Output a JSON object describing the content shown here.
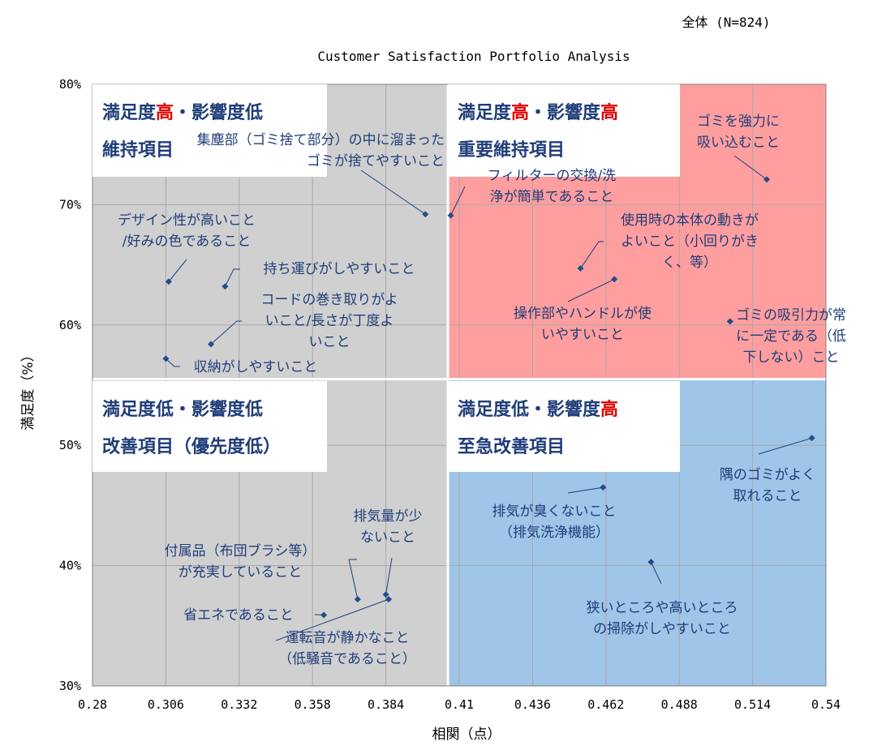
{
  "header": {
    "subset": "全体 (N=824)",
    "title": "Customer Satisfaction Portfolio Analysis"
  },
  "colors": {
    "grey_quadrant": "#d0d0d0",
    "red_quadrant": "#ff9e9e",
    "blue_quadrant": "#9fc5e8",
    "point": "#1f4e8c",
    "label": "#1f3d7a",
    "highlight": "#e00000"
  },
  "quadrants": [
    {
      "id": "top-left",
      "parts": [
        {
          "t": "満足度",
          "hl": false
        },
        {
          "t": "高",
          "hl": true
        },
        {
          "t": "・影響度低",
          "hl": false
        }
      ],
      "sub": "維持項目"
    },
    {
      "id": "top-right",
      "parts": [
        {
          "t": "満足度",
          "hl": false
        },
        {
          "t": "高",
          "hl": true
        },
        {
          "t": "・影響度",
          "hl": false
        },
        {
          "t": "高",
          "hl": true
        }
      ],
      "sub": "重要維持項目"
    },
    {
      "id": "bottom-left",
      "parts": [
        {
          "t": "満足度低・影響度低",
          "hl": false
        }
      ],
      "sub": "改善項目（優先度低）"
    },
    {
      "id": "bottom-right",
      "parts": [
        {
          "t": "満足度低・影響度",
          "hl": false
        },
        {
          "t": "高",
          "hl": true
        }
      ],
      "sub": "至急改善項目"
    }
  ],
  "chart_data": {
    "type": "scatter",
    "xlabel": "相関（点）",
    "ylabel": "満足度（%）",
    "xlim": [
      0.28,
      0.54
    ],
    "ylim": [
      30,
      80
    ],
    "xticks": [
      "0.28",
      "0.306",
      "0.332",
      "0.358",
      "0.384",
      "0.41",
      "0.436",
      "0.462",
      "0.488",
      "0.514",
      "0.54"
    ],
    "yticks": [
      "30%",
      "40%",
      "50%",
      "60%",
      "70%",
      "80%"
    ],
    "x_divider": 0.406,
    "y_divider": 55.5,
    "grid": true,
    "points": [
      {
        "x": 0.519,
        "y": 72.1,
        "label": [
          "ゴミを強力に",
          "吸い込むこと"
        ]
      },
      {
        "x": 0.398,
        "y": 69.2,
        "label": [
          "集塵部（ゴミ捨て部分）の中に溜まった",
          "ゴミが捨てやすいこと"
        ]
      },
      {
        "x": 0.407,
        "y": 69.1,
        "label": [
          "フィルターの交換/洗",
          "浄が簡単であること"
        ]
      },
      {
        "x": 0.453,
        "y": 64.7,
        "label": [
          "使用時の本体の動きが",
          "よいこと（小回りがき",
          "く、等）"
        ]
      },
      {
        "x": 0.465,
        "y": 63.8,
        "label": [
          "操作部やハンドルが使",
          "いやすいこと"
        ]
      },
      {
        "x": 0.506,
        "y": 60.3,
        "label": [
          "ゴミの吸引力が常",
          "に一定である（低",
          "下しない）こと"
        ]
      },
      {
        "x": 0.307,
        "y": 63.6,
        "label": [
          "デザイン性が高いこと",
          "/好みの色であること"
        ]
      },
      {
        "x": 0.327,
        "y": 63.2,
        "label": [
          "持ち運びがしやすいこと"
        ]
      },
      {
        "x": 0.322,
        "y": 58.4,
        "label": [
          "コードの巻き取りがよ",
          "いこと/長さが丁度よ",
          "いこと"
        ]
      },
      {
        "x": 0.306,
        "y": 57.2,
        "label": [
          "収納がしやすいこと"
        ]
      },
      {
        "x": 0.535,
        "y": 50.6,
        "label": [
          "隅のゴミがよく",
          "取れること"
        ]
      },
      {
        "x": 0.461,
        "y": 46.5,
        "label": [
          "排気が臭くないこと",
          "（排気洗浄機能）"
        ]
      },
      {
        "x": 0.478,
        "y": 40.3,
        "label": [
          "狭いところや高いところ",
          "の掃除がしやすいこと"
        ]
      },
      {
        "x": 0.384,
        "y": 37.6,
        "label": [
          "排気量が少",
          "ないこと"
        ]
      },
      {
        "x": 0.385,
        "y": 37.2,
        "label": [
          "運転音が静かなこと",
          "（低騒音であること）"
        ]
      },
      {
        "x": 0.374,
        "y": 37.2,
        "label": [
          "付属品（布団ブラシ等）",
          "が充実していること"
        ]
      },
      {
        "x": 0.362,
        "y": 35.9,
        "label": [
          "省エネであること"
        ]
      }
    ]
  }
}
